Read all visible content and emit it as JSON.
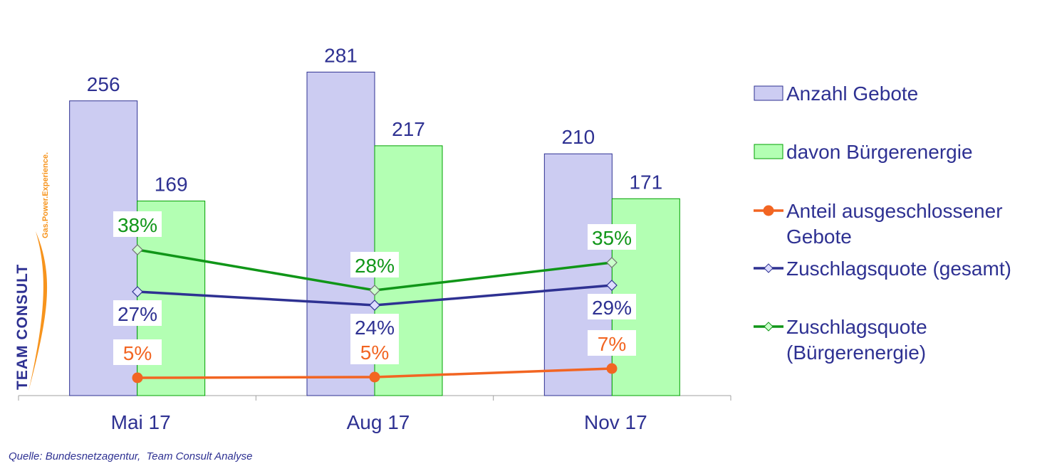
{
  "chart_data": {
    "type": "bar",
    "categories": [
      "Mai 17",
      "Aug 17",
      "Nov 17"
    ],
    "bar_series": [
      {
        "name": "Anzahl Gebote",
        "values": [
          256,
          281,
          210
        ],
        "color": "#ccccf2",
        "stroke": "#2e3192"
      },
      {
        "name": "davon Bürgerenergie",
        "values": [
          169,
          217,
          171
        ],
        "color": "#b3ffb3",
        "stroke": "#00a000"
      }
    ],
    "line_series": [
      {
        "name": "Anteil ausgeschlossener Gebote",
        "values": [
          5,
          5,
          7
        ],
        "labels": [
          "5%",
          "5%",
          "7%"
        ],
        "color": "#f26522",
        "marker": "circle",
        "label_pos": "above"
      },
      {
        "name": "Zuschlagsquote (gesamt)",
        "values": [
          27,
          24,
          29
        ],
        "labels": [
          "27%",
          "24%",
          "29%"
        ],
        "color": "#2e3192",
        "marker": "diamond",
        "label_pos": "below"
      },
      {
        "name": "Zuschlagsquote (Bürgerenergie)",
        "values": [
          38,
          28,
          35
        ],
        "labels": [
          "38%",
          "28%",
          "35%"
        ],
        "color": "#109618",
        "marker": "diamond",
        "label_pos": "above"
      }
    ],
    "bar_ylim": [
      0,
      300
    ],
    "line_ylim": [
      0,
      80
    ],
    "legend": [
      {
        "text": [
          "Anzahl Gebote"
        ],
        "kind": "bar",
        "series": 0
      },
      {
        "text": [
          "davon Bürgerenergie"
        ],
        "kind": "bar",
        "series": 1
      },
      {
        "text": [
          "Anteil ausgeschlossener",
          "Gebote"
        ],
        "kind": "line",
        "series": 0
      },
      {
        "text": [
          "Zuschlagsquote (gesamt)"
        ],
        "kind": "line",
        "series": 1
      },
      {
        "text": [
          "Zuschlagsquote",
          "(Bürgerenergie)"
        ],
        "kind": "line",
        "series": 2
      }
    ],
    "legend_position": "right",
    "grid": false
  },
  "source": "Quelle: Bundesnetzagentur,  Team Consult Analyse",
  "logo": {
    "name": "TEAM CONSULT",
    "tagline": "Gas.Power.Experience."
  },
  "colors": {
    "text": "#2e3192",
    "axis": "#a0a0a0"
  }
}
